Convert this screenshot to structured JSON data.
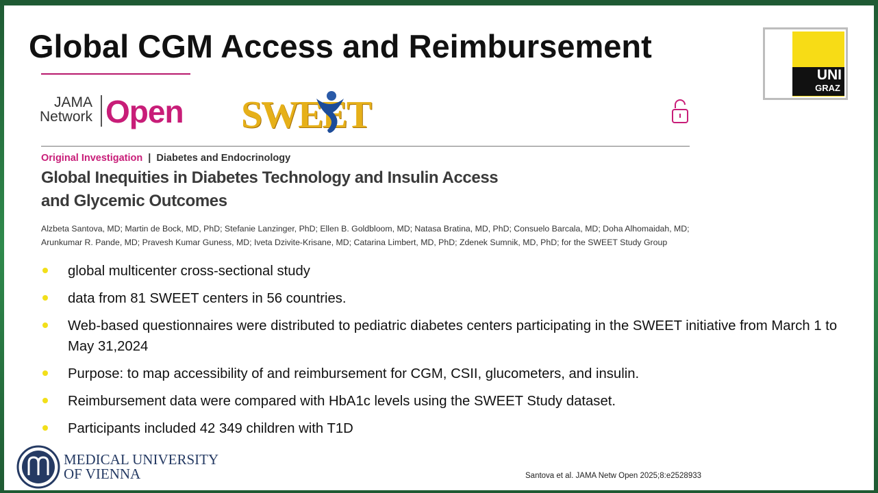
{
  "slide": {
    "title": "Global CGM Access and Reimbursement",
    "uni_logo": {
      "top": "UNI",
      "bottom": "GRAZ"
    },
    "journal_logo": {
      "line1": "JAMA",
      "line2": "Network",
      "open": "Open"
    },
    "sweet_logo": "SWEET",
    "article": {
      "type": "Original Investigation",
      "section": "Diabetes and Endocrinology",
      "title_lines": [
        "Global Inequities in Diabetes Technology and Insulin Access",
        "and Glycemic Outcomes"
      ],
      "author_lines": [
        "Alzbeta Santova, MD; Martin de Bock, MD, PhD; Stefanie Lanzinger, PhD; Ellen B. Goldbloom, MD; Natasa Bratina, MD, PhD; Consuelo Barcala, MD; Doha Alhomaidah, MD;",
        "Arunkumar R. Pande, MD; Pravesh Kumar Guness, MD; Iveta Dzivite-Krisane, MD; Catarina Limbert, MD, PhD; Zdenek Sumnik, MD, PhD; for the  SWEET Study Group"
      ]
    },
    "bullets": [
      "global multicenter cross-sectional study",
      "data from 81 SWEET centers in 56 countries.",
      "Web-based questionnaires were distributed to pediatric diabetes centers participating in the SWEET initiative from March 1 to May 31,2024",
      "Purpose: to map accessibility of and reimbursement for CGM, CSII, glucometers, and insulin.",
      "Reimbursement data were compared with HbA1c levels using the SWEET Study dataset.",
      "Participants included 42 349 children with T1D"
    ],
    "footer_logo": {
      "line1": "MEDICAL UNIVERSITY",
      "line2": "OF VIENNA"
    },
    "citation": "Santova et al. JAMA Netw Open 2025;8:e2528933"
  }
}
